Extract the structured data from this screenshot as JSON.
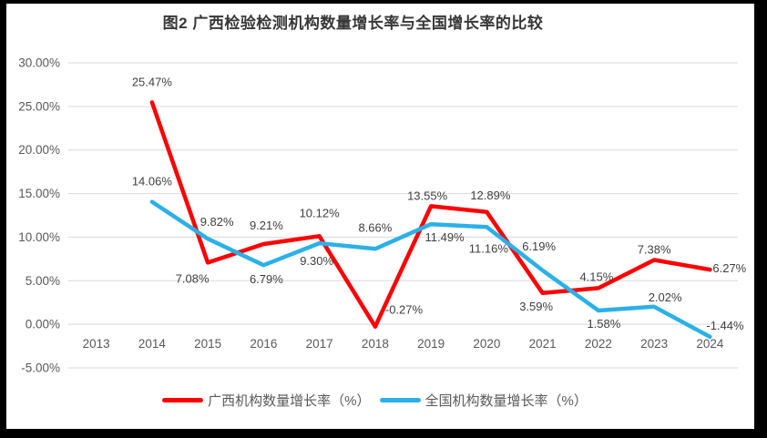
{
  "chart_data": {
    "type": "line",
    "title": "图2 广西检验检测机构数量增长率与全国增长率的比较",
    "categories": [
      "2013",
      "2014",
      "2015",
      "2016",
      "2017",
      "2018",
      "2019",
      "2020",
      "2021",
      "2022",
      "2023",
      "2024"
    ],
    "y_axis": {
      "min": -5,
      "max": 30,
      "step": 5,
      "tick_labels": [
        "30.00%",
        "25.00%",
        "20.00%",
        "15.00%",
        "10.00%",
        "5.00%",
        "0.00%",
        "-5.00%"
      ]
    },
    "grid": true,
    "grid_color": "#d9d9d9",
    "tick_color": "#595959",
    "label_color": "#404040",
    "data_labels": true,
    "legend_position": "bottom",
    "series": [
      {
        "name": "广西机构数量增长率（%）",
        "color": "#ff0000",
        "values": [
          null,
          25.47,
          7.08,
          9.21,
          10.12,
          -0.27,
          13.55,
          12.89,
          3.59,
          4.15,
          7.38,
          6.27
        ],
        "labels": [
          "",
          "25.47%",
          "7.08%",
          "9.21%",
          "10.12%",
          "-0.27%",
          "13.55%",
          "12.89%",
          "3.59%",
          "4.15%",
          "7.38%",
          "6.27%"
        ],
        "label_offsets": [
          null,
          [
            0,
            -18
          ],
          [
            -17,
            22
          ],
          [
            3,
            -16
          ],
          [
            0,
            -21
          ],
          [
            11,
            -14,
            "s"
          ],
          [
            -4,
            -7
          ],
          [
            4,
            -14
          ],
          [
            -7,
            19
          ],
          [
            -2,
            -8
          ],
          [
            0,
            -7
          ],
          [
            3,
            3,
            "s"
          ]
        ]
      },
      {
        "name": "全国机构数量增长率（%）",
        "color": "#2bb0e8",
        "values": [
          null,
          14.06,
          9.82,
          6.79,
          9.3,
          8.66,
          11.49,
          11.16,
          6.19,
          1.58,
          2.02,
          -1.44
        ],
        "labels": [
          "",
          "14.06%",
          "9.82%",
          "6.79%",
          "9.30%",
          "8.66%",
          "11.49%",
          "11.16%",
          "6.19%",
          "1.58%",
          "2.02%",
          "-1.44%"
        ],
        "label_offsets": [
          null,
          [
            0,
            -18
          ],
          [
            10,
            -14
          ],
          [
            3,
            20
          ],
          [
            -3,
            24
          ],
          [
            0,
            -19
          ],
          [
            15,
            19
          ],
          [
            2,
            28
          ],
          [
            -4,
            -22
          ],
          [
            6,
            19
          ],
          [
            12,
            -6
          ],
          [
            -4,
            -8,
            "s"
          ]
        ]
      }
    ]
  }
}
